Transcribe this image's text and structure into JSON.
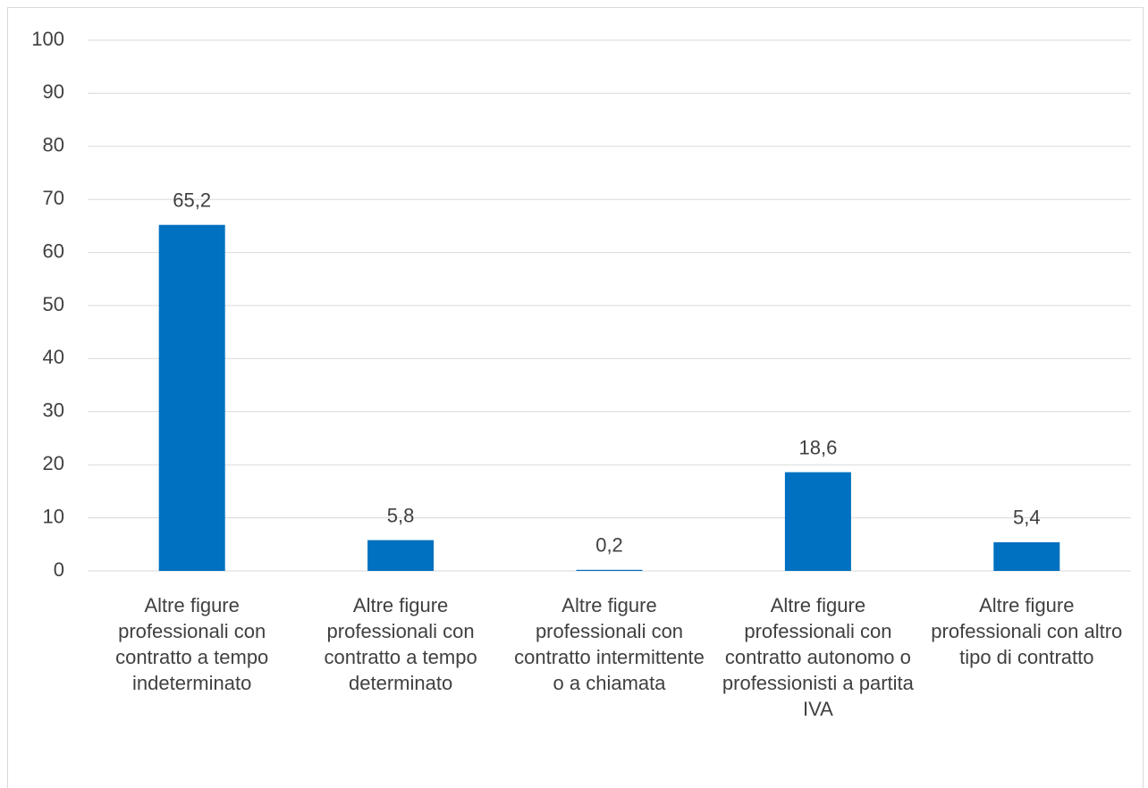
{
  "chart_data": {
    "type": "bar",
    "categories": [
      "Altre figure professionali con contratto a tempo indeterminato",
      "Altre figure professionali con contratto a tempo determinato",
      "Altre figure professionali con contratto intermittente o a chiamata",
      "Altre figure professionali con contratto autonomo o professionisti a partita IVA",
      "Altre figure professionali con altro tipo di contratto"
    ],
    "values": [
      65.2,
      5.8,
      0.2,
      18.6,
      5.4
    ],
    "value_labels": [
      "65,2",
      "5,8",
      "0,2",
      "18,6",
      "5,4"
    ],
    "color": "#0070c0",
    "ylim": [
      0,
      100
    ],
    "yticks": [
      0,
      10,
      20,
      30,
      40,
      50,
      60,
      70,
      80,
      90,
      100
    ],
    "grid": true
  }
}
